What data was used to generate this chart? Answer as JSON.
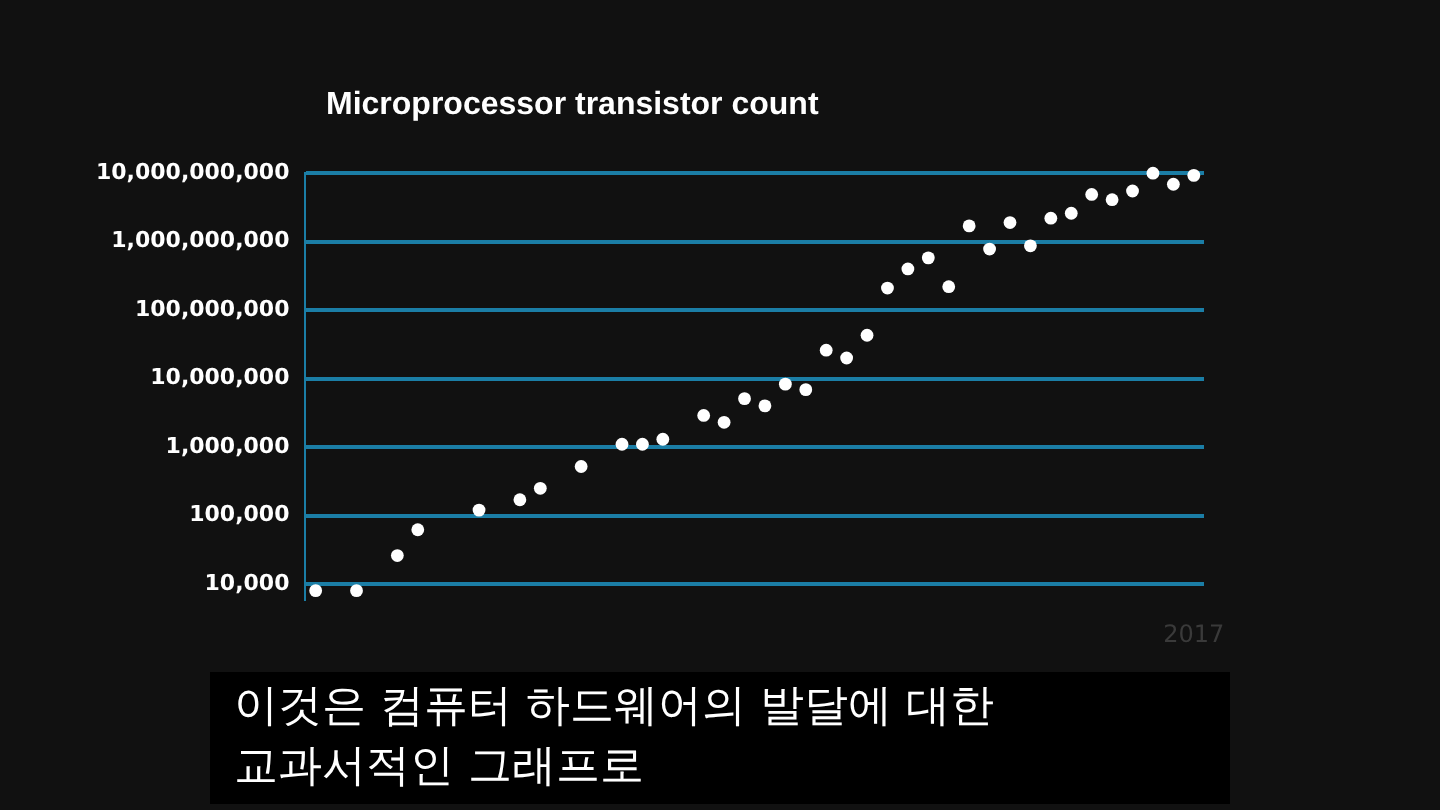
{
  "chart_data": {
    "type": "scatter",
    "title": "Microprocessor transistor count",
    "categories": [
      null,
      null,
      null,
      null,
      null,
      null,
      null,
      null,
      null,
      null,
      null,
      null,
      null,
      null,
      null,
      null,
      null,
      null,
      null,
      null,
      null,
      null,
      null,
      null,
      null,
      null,
      null,
      null,
      null,
      null,
      null,
      null,
      null,
      null,
      null,
      null,
      null,
      null,
      null,
      null,
      null,
      null,
      null,
      "2017"
    ],
    "series": [
      {
        "color": "#ffffff",
        "values": [
          8000,
          null,
          8000,
          null,
          26000,
          62000,
          null,
          null,
          120000,
          null,
          170000,
          250000,
          null,
          520000,
          null,
          1100000,
          1100000,
          1300000,
          null,
          2900000,
          2300000,
          5100000,
          4000000,
          8300000,
          6900000,
          26000000,
          20000000,
          43000000,
          210000000,
          400000000,
          580000000,
          220000000,
          1700000000,
          780000000,
          1900000000,
          870000000,
          2200000000,
          2600000000,
          4900000000,
          4100000000,
          5500000000,
          10000000000,
          6900000000,
          9300000000
        ]
      }
    ],
    "log": "y",
    "ylim": [
      6000,
      10000000000
    ],
    "yticks": [
      {
        "value": 10000,
        "label": "10,000"
      },
      {
        "value": 100000,
        "label": "100,000"
      },
      {
        "value": 1000000,
        "label": "1,000,000"
      },
      {
        "value": 10000000,
        "label": "10,000,000"
      },
      {
        "value": 100000000,
        "label": "100,000,000"
      },
      {
        "value": 1000000000,
        "label": "1,000,000,000"
      },
      {
        "value": 10000000000,
        "label": "10,000,000,000"
      }
    ],
    "grid": "y",
    "marker": "circle",
    "legend": false,
    "annotations": [
      "이것은 컴퓨터 하드웨어의 발달에 대한\n교과서적인 그래프로"
    ]
  }
}
